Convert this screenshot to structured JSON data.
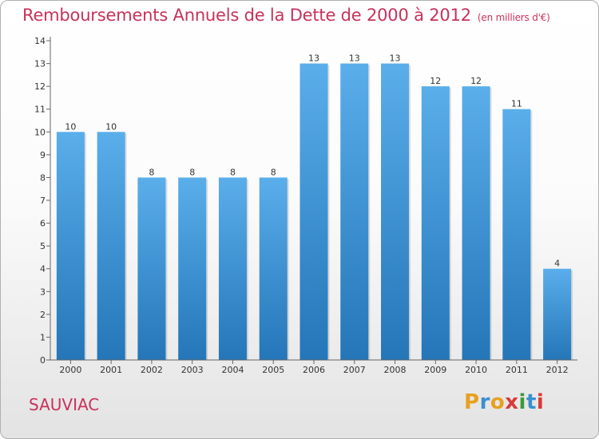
{
  "header": {
    "title": "Remboursements Annuels de la Dette de 2000 à 2012",
    "subtitle": "(en milliers d'€)"
  },
  "commune": "SAUVIAC",
  "logo": {
    "letters": [
      "P",
      "r",
      "o",
      "x",
      "i",
      "t",
      "i"
    ],
    "colors": [
      "#e8a020",
      "#3a8fd0",
      "#e8a020",
      "#d83a3a",
      "#3a9a3a",
      "#3a8fd0",
      "#d83a3a"
    ]
  },
  "colors": {
    "bar_top": "#5aaeea",
    "bar_bottom": "#2476b8",
    "axis": "#666666",
    "grid": "#bbbbbb"
  },
  "chart_data": {
    "type": "bar",
    "title": "Remboursements Annuels de la Dette de 2000 à 2012",
    "subtitle": "(en milliers d'€)",
    "xlabel": "",
    "ylabel": "",
    "categories": [
      "2000",
      "2001",
      "2002",
      "2003",
      "2004",
      "2005",
      "2006",
      "2007",
      "2008",
      "2009",
      "2010",
      "2011",
      "2012"
    ],
    "values": [
      10,
      10,
      8,
      8,
      8,
      8,
      13,
      13,
      13,
      12,
      12,
      11,
      4
    ],
    "ylim": [
      0,
      14
    ],
    "yticks": [
      0,
      1,
      2,
      3,
      4,
      5,
      6,
      7,
      8,
      9,
      10,
      11,
      12,
      13,
      14
    ],
    "grid": false
  }
}
